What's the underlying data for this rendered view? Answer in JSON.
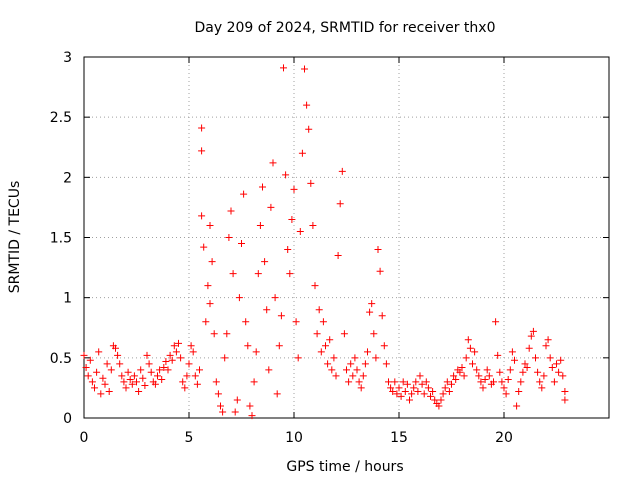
{
  "chart_data": {
    "type": "scatter",
    "title": "Day 209 of 2024, SRMTID for receiver thx0",
    "xlabel": "GPS time / hours",
    "ylabel": "SRMTID / TECUs",
    "xlim": [
      0,
      25
    ],
    "ylim": [
      0,
      3
    ],
    "xticks": [
      0,
      5,
      10,
      15,
      20
    ],
    "yticks": [
      0,
      0.5,
      1,
      1.5,
      2,
      2.5,
      3
    ],
    "xtick_labels": [
      "0",
      "5",
      "10",
      "15",
      "20"
    ],
    "ytick_labels": [
      "0",
      "0.5",
      "1",
      "1.5",
      "2",
      "2.5",
      "3"
    ],
    "grid": true,
    "marker": "+",
    "color": "#ff0000",
    "series": [
      {
        "name": "SRMTID",
        "points": [
          [
            0.0,
            0.52
          ],
          [
            0.1,
            0.42
          ],
          [
            0.2,
            0.35
          ],
          [
            0.3,
            0.48
          ],
          [
            0.4,
            0.3
          ],
          [
            0.5,
            0.25
          ],
          [
            0.6,
            0.38
          ],
          [
            0.7,
            0.55
          ],
          [
            0.8,
            0.2
          ],
          [
            0.9,
            0.33
          ],
          [
            1.0,
            0.28
          ],
          [
            1.1,
            0.45
          ],
          [
            1.2,
            0.22
          ],
          [
            1.3,
            0.4
          ],
          [
            1.4,
            0.6
          ],
          [
            1.5,
            0.58
          ],
          [
            1.6,
            0.52
          ],
          [
            1.7,
            0.45
          ],
          [
            1.8,
            0.35
          ],
          [
            1.9,
            0.3
          ],
          [
            2.0,
            0.25
          ],
          [
            2.1,
            0.38
          ],
          [
            2.2,
            0.32
          ],
          [
            2.3,
            0.28
          ],
          [
            2.4,
            0.35
          ],
          [
            2.5,
            0.3
          ],
          [
            2.6,
            0.22
          ],
          [
            2.7,
            0.4
          ],
          [
            2.8,
            0.33
          ],
          [
            2.9,
            0.27
          ],
          [
            3.0,
            0.52
          ],
          [
            3.1,
            0.45
          ],
          [
            3.2,
            0.38
          ],
          [
            3.3,
            0.3
          ],
          [
            3.4,
            0.28
          ],
          [
            3.5,
            0.35
          ],
          [
            3.6,
            0.4
          ],
          [
            3.7,
            0.32
          ],
          [
            3.8,
            0.42
          ],
          [
            3.9,
            0.47
          ],
          [
            4.0,
            0.4
          ],
          [
            4.1,
            0.52
          ],
          [
            4.2,
            0.48
          ],
          [
            4.3,
            0.6
          ],
          [
            4.4,
            0.55
          ],
          [
            4.5,
            0.62
          ],
          [
            4.6,
            0.5
          ],
          [
            4.7,
            0.3
          ],
          [
            4.8,
            0.25
          ],
          [
            4.9,
            0.35
          ],
          [
            5.0,
            0.45
          ],
          [
            5.1,
            0.6
          ],
          [
            5.2,
            0.55
          ],
          [
            5.3,
            0.35
          ],
          [
            5.4,
            0.28
          ],
          [
            5.5,
            0.4
          ],
          [
            5.6,
            2.41
          ],
          [
            5.6,
            2.22
          ],
          [
            5.6,
            1.68
          ],
          [
            5.7,
            1.42
          ],
          [
            5.8,
            0.8
          ],
          [
            5.9,
            1.1
          ],
          [
            6.0,
            1.6
          ],
          [
            6.0,
            0.95
          ],
          [
            6.1,
            1.3
          ],
          [
            6.2,
            0.7
          ],
          [
            6.3,
            0.3
          ],
          [
            6.4,
            0.2
          ],
          [
            6.5,
            0.1
          ],
          [
            6.6,
            0.05
          ],
          [
            6.7,
            0.5
          ],
          [
            6.8,
            0.7
          ],
          [
            6.9,
            1.5
          ],
          [
            7.0,
            1.72
          ],
          [
            7.1,
            1.2
          ],
          [
            7.2,
            0.05
          ],
          [
            7.3,
            0.15
          ],
          [
            7.4,
            1.0
          ],
          [
            7.5,
            1.45
          ],
          [
            7.6,
            1.86
          ],
          [
            7.7,
            0.8
          ],
          [
            7.8,
            0.6
          ],
          [
            7.9,
            0.1
          ],
          [
            8.0,
            0.02
          ],
          [
            8.1,
            0.3
          ],
          [
            8.2,
            0.55
          ],
          [
            8.3,
            1.2
          ],
          [
            8.4,
            1.6
          ],
          [
            8.5,
            1.92
          ],
          [
            8.6,
            1.3
          ],
          [
            8.7,
            0.9
          ],
          [
            8.8,
            0.4
          ],
          [
            8.9,
            1.75
          ],
          [
            9.0,
            2.12
          ],
          [
            9.1,
            1.0
          ],
          [
            9.2,
            0.2
          ],
          [
            9.3,
            0.6
          ],
          [
            9.4,
            0.85
          ],
          [
            9.5,
            2.91
          ],
          [
            9.6,
            2.02
          ],
          [
            9.7,
            1.4
          ],
          [
            9.8,
            1.2
          ],
          [
            9.9,
            1.65
          ],
          [
            10.0,
            1.9
          ],
          [
            10.1,
            0.8
          ],
          [
            10.2,
            0.5
          ],
          [
            10.3,
            1.55
          ],
          [
            10.4,
            2.2
          ],
          [
            10.5,
            2.9
          ],
          [
            10.6,
            2.6
          ],
          [
            10.7,
            2.4
          ],
          [
            10.8,
            1.95
          ],
          [
            10.9,
            1.6
          ],
          [
            11.0,
            1.1
          ],
          [
            11.1,
            0.7
          ],
          [
            11.2,
            0.9
          ],
          [
            11.3,
            0.55
          ],
          [
            11.4,
            0.8
          ],
          [
            11.5,
            0.6
          ],
          [
            11.6,
            0.45
          ],
          [
            11.7,
            0.65
          ],
          [
            11.8,
            0.4
          ],
          [
            11.9,
            0.5
          ],
          [
            12.0,
            0.35
          ],
          [
            12.1,
            1.35
          ],
          [
            12.2,
            1.78
          ],
          [
            12.3,
            2.05
          ],
          [
            12.4,
            0.7
          ],
          [
            12.5,
            0.4
          ],
          [
            12.6,
            0.3
          ],
          [
            12.7,
            0.45
          ],
          [
            12.8,
            0.35
          ],
          [
            12.9,
            0.5
          ],
          [
            13.0,
            0.4
          ],
          [
            13.1,
            0.3
          ],
          [
            13.2,
            0.25
          ],
          [
            13.3,
            0.35
          ],
          [
            13.4,
            0.45
          ],
          [
            13.5,
            0.55
          ],
          [
            13.6,
            0.88
          ],
          [
            13.7,
            0.95
          ],
          [
            13.8,
            0.7
          ],
          [
            13.9,
            0.5
          ],
          [
            14.0,
            1.4
          ],
          [
            14.1,
            1.22
          ],
          [
            14.2,
            0.85
          ],
          [
            14.3,
            0.6
          ],
          [
            14.4,
            0.45
          ],
          [
            14.5,
            0.3
          ],
          [
            14.6,
            0.25
          ],
          [
            14.7,
            0.22
          ],
          [
            14.8,
            0.3
          ],
          [
            14.9,
            0.2
          ],
          [
            15.0,
            0.25
          ],
          [
            15.1,
            0.18
          ],
          [
            15.2,
            0.3
          ],
          [
            15.3,
            0.22
          ],
          [
            15.4,
            0.28
          ],
          [
            15.5,
            0.15
          ],
          [
            15.6,
            0.2
          ],
          [
            15.7,
            0.25
          ],
          [
            15.8,
            0.3
          ],
          [
            15.9,
            0.22
          ],
          [
            16.0,
            0.35
          ],
          [
            16.1,
            0.28
          ],
          [
            16.2,
            0.2
          ],
          [
            16.3,
            0.3
          ],
          [
            16.4,
            0.25
          ],
          [
            16.5,
            0.18
          ],
          [
            16.6,
            0.22
          ],
          [
            16.7,
            0.15
          ],
          [
            16.8,
            0.12
          ],
          [
            16.9,
            0.1
          ],
          [
            17.0,
            0.15
          ],
          [
            17.1,
            0.2
          ],
          [
            17.2,
            0.25
          ],
          [
            17.3,
            0.3
          ],
          [
            17.4,
            0.22
          ],
          [
            17.5,
            0.28
          ],
          [
            17.6,
            0.35
          ],
          [
            17.7,
            0.32
          ],
          [
            17.8,
            0.4
          ],
          [
            17.9,
            0.38
          ],
          [
            18.0,
            0.42
          ],
          [
            18.1,
            0.35
          ],
          [
            18.2,
            0.5
          ],
          [
            18.3,
            0.65
          ],
          [
            18.4,
            0.58
          ],
          [
            18.5,
            0.45
          ],
          [
            18.6,
            0.55
          ],
          [
            18.7,
            0.4
          ],
          [
            18.8,
            0.35
          ],
          [
            18.9,
            0.3
          ],
          [
            19.0,
            0.25
          ],
          [
            19.1,
            0.32
          ],
          [
            19.2,
            0.4
          ],
          [
            19.3,
            0.35
          ],
          [
            19.4,
            0.28
          ],
          [
            19.5,
            0.3
          ],
          [
            19.6,
            0.8
          ],
          [
            19.7,
            0.52
          ],
          [
            19.8,
            0.38
          ],
          [
            19.9,
            0.3
          ],
          [
            20.0,
            0.25
          ],
          [
            20.1,
            0.2
          ],
          [
            20.2,
            0.32
          ],
          [
            20.3,
            0.4
          ],
          [
            20.4,
            0.55
          ],
          [
            20.5,
            0.48
          ],
          [
            20.6,
            0.1
          ],
          [
            20.7,
            0.22
          ],
          [
            20.8,
            0.3
          ],
          [
            20.9,
            0.38
          ],
          [
            21.0,
            0.45
          ],
          [
            21.1,
            0.42
          ],
          [
            21.2,
            0.58
          ],
          [
            21.3,
            0.68
          ],
          [
            21.4,
            0.72
          ],
          [
            21.5,
            0.5
          ],
          [
            21.6,
            0.38
          ],
          [
            21.7,
            0.3
          ],
          [
            21.8,
            0.25
          ],
          [
            21.9,
            0.35
          ],
          [
            22.0,
            0.6
          ],
          [
            22.1,
            0.65
          ],
          [
            22.2,
            0.5
          ],
          [
            22.3,
            0.42
          ],
          [
            22.4,
            0.3
          ],
          [
            22.5,
            0.45
          ],
          [
            22.6,
            0.38
          ],
          [
            22.7,
            0.48
          ],
          [
            22.8,
            0.35
          ],
          [
            22.9,
            0.22
          ],
          [
            22.9,
            0.15
          ]
        ]
      }
    ]
  }
}
